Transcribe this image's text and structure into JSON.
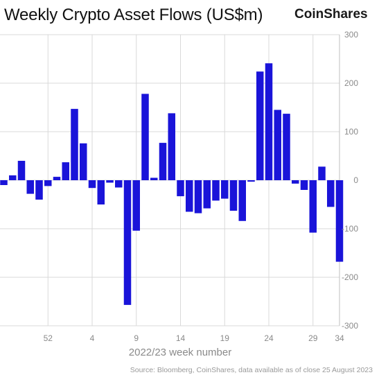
{
  "header": {
    "title": "Weekly Crypto Asset Flows (US$m)",
    "brand": "CoinShares"
  },
  "footer": {
    "source": "Source: Bloomberg, CoinShares, data available as of close 25 August 2023"
  },
  "colors": {
    "bar": "#1a14d9",
    "grid": "#d9d9d9",
    "axis": "#bfbfbf"
  },
  "chart_data": {
    "type": "bar",
    "title": "Weekly Crypto Asset Flows (US$m)",
    "xlabel": "2022/23 week number",
    "ylabel": "",
    "ylim": [
      -300,
      300
    ],
    "yticks": [
      300,
      200,
      100,
      0,
      -100,
      -200,
      -300
    ],
    "grid": true,
    "y_axis_side": "right",
    "x_tick_labels": [
      {
        "label": "52",
        "index": 5
      },
      {
        "label": "4",
        "index": 10
      },
      {
        "label": "9",
        "index": 15
      },
      {
        "label": "14",
        "index": 20
      },
      {
        "label": "19",
        "index": 25
      },
      {
        "label": "24",
        "index": 30
      },
      {
        "label": "29",
        "index": 35
      },
      {
        "label": "34",
        "index": 40
      }
    ],
    "values": [
      -10,
      10,
      40,
      -28,
      -40,
      -12,
      7,
      37,
      147,
      76,
      -16,
      -50,
      -5,
      -15,
      -257,
      -104,
      178,
      5,
      77,
      138,
      -33,
      -65,
      -68,
      -58,
      -42,
      -38,
      -63,
      -84,
      -3,
      224,
      241,
      145,
      137,
      -7,
      -20,
      -108,
      28,
      -55,
      -168
    ]
  }
}
